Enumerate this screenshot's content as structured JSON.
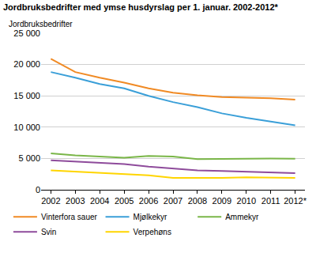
{
  "chart_data": {
    "type": "line",
    "title": "Jordbruksbedrifter med ymse husdyrslag per 1. januar. 2002-2012*",
    "y_label": "Jordbruksbedrifter",
    "categories": [
      "2002",
      "2003",
      "2004",
      "2005",
      "2006",
      "2007",
      "2008",
      "2009",
      "2010",
      "2011",
      "2012*"
    ],
    "series": [
      {
        "name": "Vinterfora sauer",
        "color": "#f08a24",
        "values": [
          20900,
          18800,
          17900,
          17100,
          16200,
          15500,
          15100,
          14800,
          14700,
          14600,
          14400
        ]
      },
      {
        "name": "Mjølkekyr",
        "color": "#3a9fd8",
        "values": [
          18800,
          17900,
          16900,
          16200,
          15000,
          14000,
          13200,
          12200,
          11500,
          10900,
          10300
        ]
      },
      {
        "name": "Ammekyr",
        "color": "#7ab648",
        "values": [
          5800,
          5500,
          5300,
          5100,
          5400,
          5300,
          4900,
          4950,
          5000,
          5000,
          4950
        ]
      },
      {
        "name": "Svin",
        "color": "#8e4b9b",
        "values": [
          4700,
          4500,
          4300,
          4100,
          3700,
          3400,
          3100,
          3000,
          2900,
          2750,
          2650
        ]
      },
      {
        "name": "Verpehøns",
        "color": "#ffd500",
        "values": [
          3100,
          2900,
          2700,
          2500,
          2300,
          1900,
          1900,
          1900,
          2000,
          1950,
          1900
        ]
      }
    ],
    "ylim": [
      0,
      25000
    ],
    "yticks": [
      0,
      {
        "value": 5000,
        "label": "5 000"
      },
      {
        "value": 10000,
        "label": "10 000"
      },
      {
        "value": 15000,
        "label": "15 000"
      },
      {
        "value": 20000,
        "label": "20 000"
      },
      {
        "value": 25000,
        "label": "25 000"
      }
    ],
    "grid": true,
    "legend": "bottom"
  }
}
